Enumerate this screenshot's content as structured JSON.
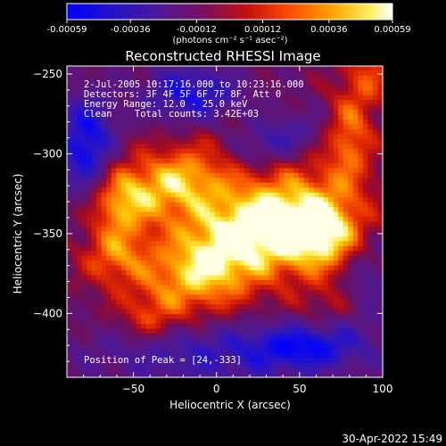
{
  "colorbar": {
    "ticks": [
      -0.00059,
      -0.00036,
      -0.00012,
      0.00012,
      0.00036,
      0.00059
    ],
    "tick_labels": [
      "-0.00059",
      "-0.00036",
      "-0.00012",
      "0.00012",
      "0.00036",
      "0.00059"
    ],
    "range": [
      -0.00059,
      0.00059
    ],
    "unit_label": "(photons cm⁻² s⁻¹ asec⁻²)"
  },
  "annotations": {
    "time_range": "2-Jul-2005 10:17:16.000 to 10:23:16.000",
    "detectors": "Detectors: 3F 4F 5F 6F 7F 8F, Att 0",
    "energy_range": "Energy Range: 12.0 - 25.0 keV",
    "method_counts": "Clean    Total counts: 3.42E+03",
    "peak_position": "Position of Peak = [24,-333]"
  },
  "footer_date": "30-Apr-2022 15:49",
  "colors": {
    "background": "#000000",
    "foreground": "#ffffff",
    "colormap": [
      "#0000ff",
      "#3a1aa8",
      "#5a1a8a",
      "#8a0f5a",
      "#c81010",
      "#ff5a00",
      "#ffb400",
      "#ffff80",
      "#ffffff"
    ]
  },
  "chart_data": {
    "type": "heatmap",
    "title": "Reconstructed RHESSI Image",
    "xlabel": "Heliocentric X (arcsec)",
    "ylabel": "Heliocentric Y (arcsec)",
    "xlim": [
      -90,
      100
    ],
    "ylim": [
      -440,
      -245
    ],
    "xticks": [
      -50,
      0,
      50,
      100
    ],
    "yticks": [
      -250,
      -300,
      -350,
      -400
    ],
    "peak": [
      24,
      -333
    ],
    "value_range": [
      -0.00059,
      0.00059
    ],
    "grid": false,
    "blobs": [
      {
        "x": 20,
        "y": -345,
        "sx": 38,
        "sy": 20,
        "angle": -28,
        "amp": 1.0
      },
      {
        "x": 65,
        "y": -352,
        "sx": 22,
        "sy": 18,
        "angle": 0,
        "amp": 1.0
      },
      {
        "x": -25,
        "y": -318,
        "sx": 26,
        "sy": 16,
        "angle": -20,
        "amp": 0.85
      },
      {
        "x": -60,
        "y": -330,
        "sx": 12,
        "sy": 18,
        "angle": 0,
        "amp": 0.6
      },
      {
        "x": -10,
        "y": -380,
        "sx": 30,
        "sy": 18,
        "angle": -15,
        "amp": 0.55
      },
      {
        "x": -62,
        "y": -365,
        "sx": 14,
        "sy": 12,
        "angle": 0,
        "amp": 0.5
      },
      {
        "x": 80,
        "y": -288,
        "sx": 10,
        "sy": 22,
        "angle": 0,
        "amp": 0.6
      },
      {
        "x": 92,
        "y": -250,
        "sx": 10,
        "sy": 14,
        "angle": 0,
        "amp": 0.45
      },
      {
        "x": -40,
        "y": -405,
        "sx": 12,
        "sy": 10,
        "angle": 0,
        "amp": 0.35
      },
      {
        "x": 72,
        "y": -395,
        "sx": 20,
        "sy": 10,
        "angle": -10,
        "amp": 0.25
      },
      {
        "x": -78,
        "y": -295,
        "sx": 12,
        "sy": 22,
        "angle": 0,
        "amp": -0.9
      },
      {
        "x": -15,
        "y": -262,
        "sx": 20,
        "sy": 12,
        "angle": 0,
        "amp": -0.75
      },
      {
        "x": 35,
        "y": -292,
        "sx": 20,
        "sy": 10,
        "angle": -20,
        "amp": -0.55
      },
      {
        "x": 0,
        "y": -425,
        "sx": 55,
        "sy": 14,
        "angle": 0,
        "amp": -0.55
      },
      {
        "x": 55,
        "y": -420,
        "sx": 22,
        "sy": 10,
        "angle": 0,
        "amp": -0.6
      },
      {
        "x": 90,
        "y": -375,
        "sx": 12,
        "sy": 22,
        "angle": 0,
        "amp": -0.5
      }
    ]
  }
}
